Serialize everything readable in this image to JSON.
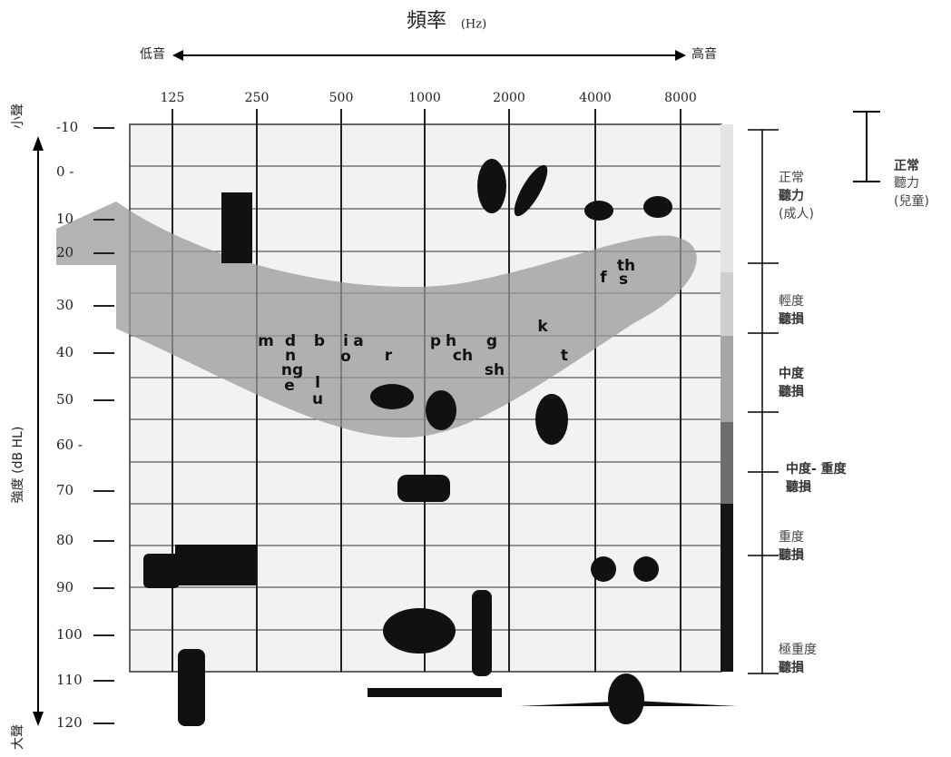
{
  "header": {
    "title": "頻率",
    "unit": "(Hz)",
    "low": "低音",
    "high": "高音"
  },
  "frequencies": [
    "125",
    "250",
    "500",
    "1000",
    "2000",
    "4000",
    "8000"
  ],
  "y_axis": {
    "label": "強度 (dB HL)",
    "soft": "小聲",
    "loud": "大聲",
    "ticks": [
      "-10",
      "0 -",
      "10",
      "20",
      "30",
      "40",
      "50",
      "60 -",
      "70",
      "80",
      "90",
      "100",
      "110",
      "120"
    ]
  },
  "speech_sounds": [
    "m",
    "d",
    "b",
    "i",
    "a",
    "n",
    "ng",
    "e",
    "l",
    "u",
    "o",
    "r",
    "p",
    "h",
    "ch",
    "g",
    "sh",
    "k",
    "t",
    "f",
    "th",
    "s"
  ],
  "hearing_levels": [
    {
      "name": "正常",
      "sub": "聽力",
      "note": "(成人)"
    },
    {
      "name": "輕度",
      "sub": "聽損"
    },
    {
      "name": "中度",
      "sub": "聽損"
    },
    {
      "name": "中度- 重度",
      "sub": "聽損"
    },
    {
      "name": "重度",
      "sub": "聽損"
    },
    {
      "name": "極重度",
      "sub": "聽損"
    }
  ],
  "child_normal": {
    "name": "正常",
    "sub": "聽力",
    "note": "(兒童)"
  }
}
